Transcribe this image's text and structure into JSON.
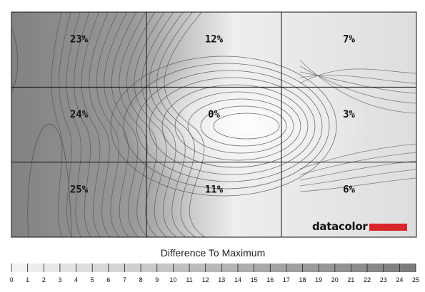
{
  "chart_data": {
    "type": "heatmap",
    "title": "",
    "grid": {
      "rows": 3,
      "cols": 3
    },
    "cells": [
      [
        "23%",
        "12%",
        "7%"
      ],
      [
        "24%",
        "0%",
        "3%"
      ],
      [
        "25%",
        "11%",
        "6%"
      ]
    ],
    "values": [
      [
        23,
        12,
        7
      ],
      [
        24,
        0,
        3
      ],
      [
        25,
        11,
        6
      ]
    ],
    "legend": {
      "title": "Difference To Maximum",
      "min": 0,
      "max": 25,
      "ticks": [
        "0",
        "1",
        "2",
        "3",
        "4",
        "5",
        "6",
        "7",
        "8",
        "9",
        "10",
        "11",
        "12",
        "13",
        "14",
        "15",
        "16",
        "17",
        "18",
        "19",
        "20",
        "21",
        "22",
        "23",
        "24",
        "25"
      ]
    },
    "colors": {
      "low": "#f4f4f4",
      "high": "#7b7b7b",
      "contour": "#4a4a4a",
      "grid_line": "#111111",
      "brand_red": "#d9252a"
    },
    "logo_text": "datacolor"
  }
}
